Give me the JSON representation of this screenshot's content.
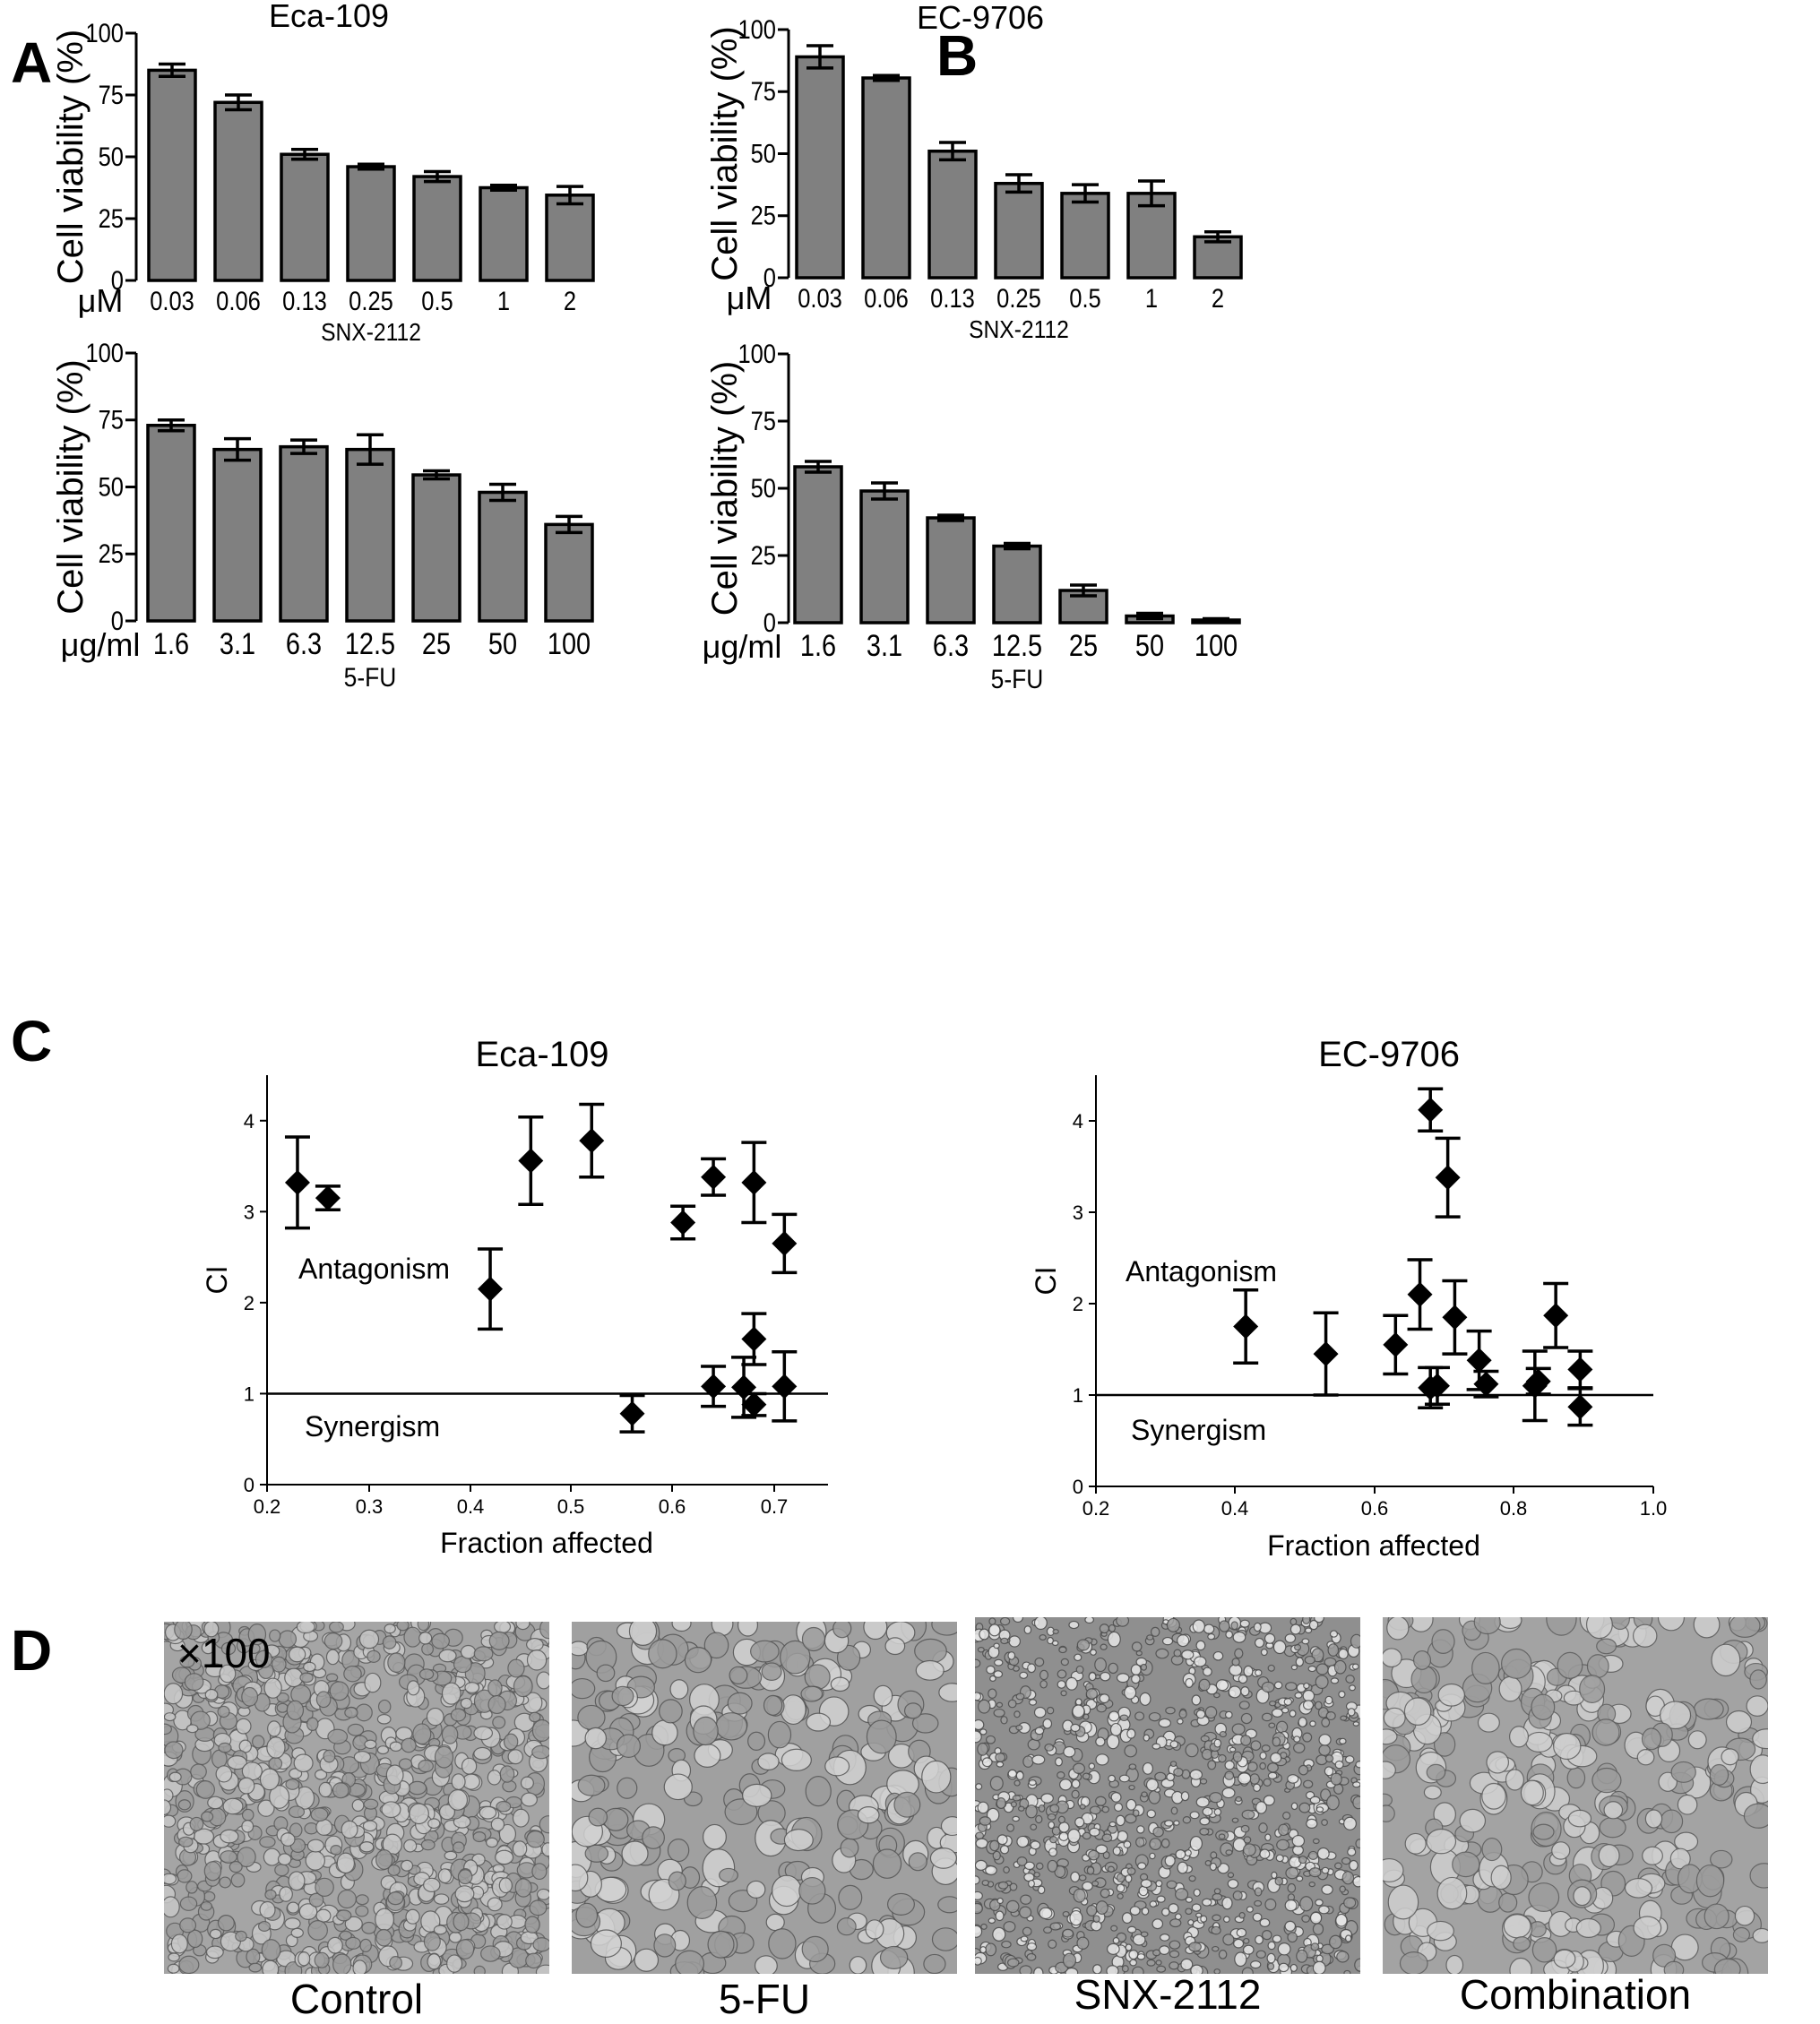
{
  "panel_labels": [
    "A",
    "B",
    "C",
    "D"
  ],
  "chart_data": [
    {
      "id": "A-top",
      "type": "bar",
      "title": "Eca-109",
      "ylabel": "Cell viability (%)",
      "xlabel": "SNX-2112",
      "unit": "μM",
      "categories": [
        "0.03",
        "0.06",
        "0.13",
        "0.25",
        "0.5",
        "1",
        "2"
      ],
      "values": [
        85,
        72,
        51,
        46,
        42,
        37.5,
        34.5
      ],
      "errors": [
        2.5,
        3,
        2,
        1,
        2,
        1,
        3.5
      ],
      "yticks": [
        "0",
        "25",
        "50",
        "75",
        "100"
      ],
      "ylim": [
        0,
        100
      ]
    },
    {
      "id": "A-bottom",
      "type": "bar",
      "title": "",
      "ylabel": "Cell viability (%)",
      "xlabel": "5-FU",
      "unit": "μg/ml",
      "categories": [
        "1.6",
        "3.1",
        "6.3",
        "12.5",
        "25",
        "50",
        "100"
      ],
      "values": [
        73,
        64,
        65,
        64,
        54.5,
        48,
        36
      ],
      "errors": [
        2,
        4,
        2.5,
        5.5,
        1.5,
        3,
        3
      ],
      "yticks": [
        "0",
        "25",
        "50",
        "75",
        "100"
      ],
      "ylim": [
        0,
        100
      ]
    },
    {
      "id": "B-top",
      "type": "bar",
      "title": "EC-9706",
      "ylabel": "Cell viability (%)",
      "xlabel": "SNX-2112",
      "unit": "μM",
      "categories": [
        "0.03",
        "0.06",
        "0.13",
        "0.25",
        "0.5",
        "1",
        "2"
      ],
      "values": [
        89,
        80.5,
        51,
        38,
        34,
        34,
        16.5
      ],
      "errors": [
        4.5,
        1,
        3.5,
        3.5,
        3.5,
        5,
        2
      ],
      "yticks": [
        "0",
        "25",
        "50",
        "75",
        "100"
      ],
      "ylim": [
        0,
        100
      ]
    },
    {
      "id": "B-bottom",
      "type": "bar",
      "title": "",
      "ylabel": "Cell viability (%)",
      "xlabel": "5-FU",
      "unit": "μg/ml",
      "categories": [
        "1.6",
        "3.1",
        "6.3",
        "12.5",
        "25",
        "50",
        "100"
      ],
      "values": [
        58,
        49,
        39,
        28.5,
        12,
        2.5,
        1
      ],
      "errors": [
        2,
        3,
        1,
        1,
        2,
        1,
        0.5
      ],
      "yticks": [
        "0",
        "25",
        "50",
        "75",
        "100"
      ],
      "ylim": [
        0,
        100
      ]
    },
    {
      "id": "C-left",
      "type": "scatter",
      "title": "Eca-109",
      "ylabel": "CI",
      "xlabel": "Fraction affected",
      "xlim": [
        0.2,
        0.75
      ],
      "ylim": [
        0,
        4.5
      ],
      "xticks": [
        "0.2",
        "0.3",
        "0.4",
        "0.5",
        "0.6",
        "0.7"
      ],
      "yticks": [
        "0",
        "1",
        "2",
        "3",
        "4"
      ],
      "reference_line": 1,
      "annotations": [
        "Antagonism",
        "Synergism"
      ],
      "points": [
        {
          "x": 0.23,
          "y": 3.32,
          "err": 0.5
        },
        {
          "x": 0.26,
          "y": 3.15,
          "err": 0.13
        },
        {
          "x": 0.42,
          "y": 2.15,
          "err": 0.44
        },
        {
          "x": 0.46,
          "y": 3.56,
          "err": 0.48
        },
        {
          "x": 0.52,
          "y": 3.78,
          "err": 0.4
        },
        {
          "x": 0.56,
          "y": 0.78,
          "err": 0.2
        },
        {
          "x": 0.61,
          "y": 2.88,
          "err": 0.18
        },
        {
          "x": 0.64,
          "y": 1.08,
          "err": 0.22
        },
        {
          "x": 0.64,
          "y": 3.38,
          "err": 0.2
        },
        {
          "x": 0.67,
          "y": 1.07,
          "err": 0.33
        },
        {
          "x": 0.68,
          "y": 0.88,
          "err": 0.12
        },
        {
          "x": 0.68,
          "y": 1.6,
          "err": 0.28
        },
        {
          "x": 0.68,
          "y": 3.32,
          "err": 0.44
        },
        {
          "x": 0.71,
          "y": 1.08,
          "err": 0.38
        },
        {
          "x": 0.71,
          "y": 2.65,
          "err": 0.32
        }
      ]
    },
    {
      "id": "C-right",
      "type": "scatter",
      "title": "EC-9706",
      "ylabel": "CI",
      "xlabel": "Fraction affected",
      "xlim": [
        0.2,
        1.0
      ],
      "ylim": [
        0,
        4.5
      ],
      "xticks": [
        "0.2",
        "0.4",
        "0.6",
        "0.8",
        "1.0"
      ],
      "yticks": [
        "0",
        "1",
        "2",
        "3",
        "4"
      ],
      "reference_line": 1,
      "annotations": [
        "Antagonism",
        "Synergism"
      ],
      "points": [
        {
          "x": 0.415,
          "y": 1.75,
          "err": 0.4
        },
        {
          "x": 0.53,
          "y": 1.45,
          "err": 0.45
        },
        {
          "x": 0.63,
          "y": 1.55,
          "err": 0.32
        },
        {
          "x": 0.665,
          "y": 2.1,
          "err": 0.38
        },
        {
          "x": 0.68,
          "y": 4.12,
          "err": 0.23
        },
        {
          "x": 0.68,
          "y": 1.08,
          "err": 0.22
        },
        {
          "x": 0.69,
          "y": 1.1,
          "err": 0.2
        },
        {
          "x": 0.705,
          "y": 3.38,
          "err": 0.43
        },
        {
          "x": 0.715,
          "y": 1.85,
          "err": 0.4
        },
        {
          "x": 0.75,
          "y": 1.38,
          "err": 0.32
        },
        {
          "x": 0.76,
          "y": 1.12,
          "err": 0.14
        },
        {
          "x": 0.83,
          "y": 1.1,
          "err": 0.38
        },
        {
          "x": 0.835,
          "y": 1.15,
          "err": 0.14
        },
        {
          "x": 0.86,
          "y": 1.87,
          "err": 0.35
        },
        {
          "x": 0.895,
          "y": 1.28,
          "err": 0.2
        },
        {
          "x": 0.895,
          "y": 0.87,
          "err": 0.2
        }
      ]
    }
  ],
  "micrographs": {
    "magnification": "×100",
    "captions": [
      "Control",
      "5-FU",
      "SNX-2112",
      "Combination"
    ]
  }
}
